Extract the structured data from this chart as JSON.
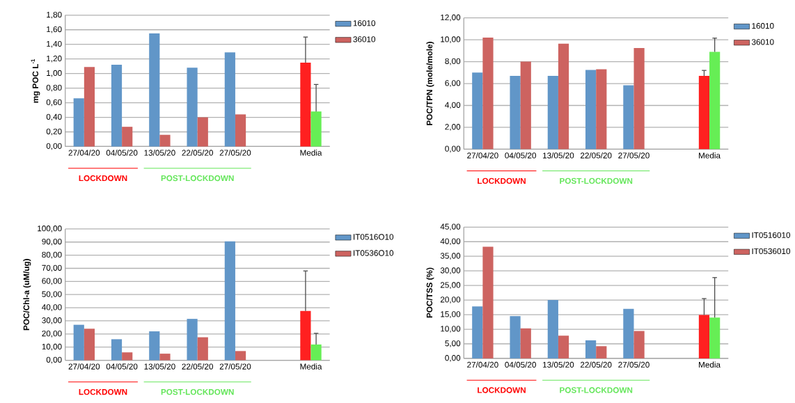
{
  "chart_data": [
    {
      "type": "bar",
      "ylabel": "mg POC L$^{-1}$",
      "categories": [
        "27/04/20",
        "04/05/20",
        "13/05/20",
        "22/05/20",
        "27/05/20",
        null,
        "Media"
      ],
      "series": [
        {
          "name": "16010",
          "color": "#6196c8",
          "colors": [
            "#6196c8",
            "#6196c8",
            "#6196c8",
            "#6196c8",
            "#6196c8",
            null,
            "#ff2020"
          ],
          "values": [
            0.66,
            1.12,
            1.55,
            1.08,
            1.29,
            null,
            1.15
          ],
          "errors": [
            null,
            null,
            null,
            null,
            null,
            null,
            [
              1.15,
              1.5
            ]
          ]
        },
        {
          "name": "36010",
          "color": "#cd6360",
          "colors": [
            "#cd6360",
            "#cd6360",
            "#cd6360",
            "#cd6360",
            "#cd6360",
            null,
            "#66ee55"
          ],
          "values": [
            1.09,
            0.27,
            0.16,
            0.4,
            0.44,
            null,
            0.48
          ],
          "errors": [
            null,
            null,
            null,
            null,
            null,
            null,
            [
              0.48,
              0.85
            ]
          ]
        }
      ],
      "ylim": [
        0,
        1.8
      ],
      "yticks": [
        {
          "value": 0,
          "label": "0,00"
        },
        {
          "value": 0.2,
          "label": "0,20"
        },
        {
          "value": 0.4,
          "label": "0,40"
        },
        {
          "value": 0.6,
          "label": "0,60"
        },
        {
          "value": 0.8,
          "label": "0,80"
        },
        {
          "value": 1.0,
          "label": "1,00"
        },
        {
          "value": 1.2,
          "label": "1,20"
        },
        {
          "value": 1.4,
          "label": "1,40"
        },
        {
          "value": 1.6,
          "label": "1,60"
        },
        {
          "value": 1.8,
          "label": "1,80"
        }
      ],
      "grid": "y",
      "legend": "top right",
      "annotations": [
        "LOCKDOWN",
        "POST-LOCKDOWN"
      ]
    },
    {
      "type": "bar",
      "ylabel": "POC/TPN (mole/mole)",
      "categories": [
        "27/04/20",
        "04/05/20",
        "13/05/20",
        "22/05/20",
        "27/05/20",
        null,
        "Media"
      ],
      "series": [
        {
          "name": "16010",
          "color": "#6196c8",
          "colors": [
            "#6196c8",
            "#6196c8",
            "#6196c8",
            "#6196c8",
            "#6196c8",
            null,
            "#ff2020"
          ],
          "values": [
            7.0,
            6.7,
            6.7,
            7.25,
            5.85,
            null,
            6.7
          ],
          "errors": [
            null,
            null,
            null,
            null,
            null,
            null,
            [
              6.7,
              7.2
            ]
          ]
        },
        {
          "name": "36010",
          "color": "#cd6360",
          "colors": [
            "#cd6360",
            "#cd6360",
            "#cd6360",
            "#cd6360",
            "#cd6360",
            null,
            "#66ee55"
          ],
          "values": [
            10.2,
            8.0,
            9.65,
            7.3,
            9.25,
            null,
            8.9
          ],
          "errors": [
            null,
            null,
            null,
            null,
            null,
            null,
            [
              8.9,
              10.15
            ]
          ]
        }
      ],
      "ylim": [
        0,
        12
      ],
      "yticks": [
        {
          "value": 0,
          "label": "0,00"
        },
        {
          "value": 2,
          "label": "2,00"
        },
        {
          "value": 4,
          "label": "4,00"
        },
        {
          "value": 6,
          "label": "6,00"
        },
        {
          "value": 8,
          "label": "8,00"
        },
        {
          "value": 10,
          "label": "10,00"
        },
        {
          "value": 12,
          "label": "12,00"
        }
      ],
      "grid": "y",
      "legend": "top right",
      "annotations": [
        "LOCKDOWN",
        "POST-LOCKDOWN"
      ]
    },
    {
      "type": "bar",
      "ylabel": "POC/Chl-a (uM/ug)",
      "categories": [
        "27/04/20",
        "04/05/20",
        "13/05/20",
        "22/05/20",
        "27/05/20",
        null,
        "Media"
      ],
      "series": [
        {
          "name": "IT0516O10",
          "color": "#6196c8",
          "colors": [
            "#6196c8",
            "#6196c8",
            "#6196c8",
            "#6196c8",
            "#6196c8",
            null,
            "#ff2020"
          ],
          "values": [
            27,
            16,
            22,
            31.5,
            90.5,
            null,
            37.5
          ],
          "errors": [
            null,
            null,
            null,
            null,
            null,
            null,
            [
              37.5,
              68
            ]
          ]
        },
        {
          "name": "IT0536O10",
          "color": "#cd6360",
          "colors": [
            "#cd6360",
            "#cd6360",
            "#cd6360",
            "#cd6360",
            "#cd6360",
            null,
            "#66ee55"
          ],
          "values": [
            24,
            6,
            5,
            17.5,
            7,
            null,
            12
          ],
          "errors": [
            null,
            null,
            null,
            null,
            null,
            null,
            [
              12,
              20.5
            ]
          ]
        }
      ],
      "ylim": [
        0,
        100
      ],
      "yticks": [
        {
          "value": 0,
          "label": "0,00"
        },
        {
          "value": 10,
          "label": "10,00"
        },
        {
          "value": 20,
          "label": "20,00"
        },
        {
          "value": 30,
          "label": "30,00"
        },
        {
          "value": 40,
          "label": "40,00"
        },
        {
          "value": 50,
          "label": "50,00"
        },
        {
          "value": 60,
          "label": "60,00"
        },
        {
          "value": 70,
          "label": "70,00"
        },
        {
          "value": 80,
          "label": "80,00"
        },
        {
          "value": 90,
          "label": "90,00"
        },
        {
          "value": 100,
          "label": "100,00"
        }
      ],
      "grid": "y",
      "legend": "top right",
      "annotations": [
        "LOCKDOWN",
        "POST-LOCKDOWN"
      ]
    },
    {
      "type": "bar",
      "ylabel": "POC/TSS (%)",
      "categories": [
        "27/04/20",
        "04/05/20",
        "13/05/20",
        "22/05/20",
        "27/05/20",
        null,
        "Media"
      ],
      "series": [
        {
          "name": "IT0516010",
          "color": "#6196c8",
          "colors": [
            "#6196c8",
            "#6196c8",
            "#6196c8",
            "#6196c8",
            "#6196c8",
            null,
            "#ff2020"
          ],
          "values": [
            17.8,
            14.5,
            20,
            6.2,
            17,
            null,
            14.9
          ],
          "errors": [
            null,
            null,
            null,
            null,
            null,
            null,
            [
              14.9,
              20.5
            ]
          ]
        },
        {
          "name": "IT0536010",
          "color": "#cd6360",
          "colors": [
            "#cd6360",
            "#cd6360",
            "#cd6360",
            "#cd6360",
            "#cd6360",
            null,
            "#66ee55"
          ],
          "values": [
            38.3,
            10.3,
            7.8,
            4.2,
            9.4,
            null,
            14
          ],
          "errors": [
            null,
            null,
            null,
            null,
            null,
            null,
            [
              14,
              27.7
            ]
          ]
        }
      ],
      "ylim": [
        0,
        45
      ],
      "yticks": [
        {
          "value": 0,
          "label": "0,00"
        },
        {
          "value": 5,
          "label": "5,00"
        },
        {
          "value": 10,
          "label": "10,00"
        },
        {
          "value": 15,
          "label": "15,00"
        },
        {
          "value": 20,
          "label": "20,00"
        },
        {
          "value": 25,
          "label": "25,00"
        },
        {
          "value": 30,
          "label": "30,00"
        },
        {
          "value": 35,
          "label": "35,00"
        },
        {
          "value": 40,
          "label": "40,00"
        },
        {
          "value": 45,
          "label": "45,00"
        }
      ],
      "grid": "y",
      "legend": "top right",
      "annotations": [
        "LOCKDOWN",
        "POST-LOCKDOWN"
      ]
    }
  ]
}
